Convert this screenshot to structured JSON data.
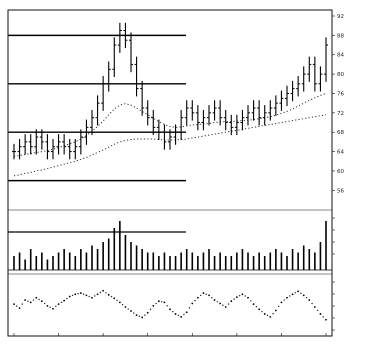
{
  "chart_data": {
    "type": "line",
    "title": "",
    "panels": {
      "price": {
        "type": "candlestick",
        "ylim": [
          54,
          92
        ],
        "y_ticks": [
          56,
          60,
          64,
          68,
          72,
          76,
          80,
          84,
          88,
          92
        ],
        "bold_levels": [
          58,
          68,
          78,
          88
        ],
        "series": [
          {
            "values": [
              64,
              65,
              66,
              65,
              67,
              66,
              64,
              65,
              66,
              65,
              64,
              65,
              67,
              69,
              71,
              74,
              78,
              81,
              86,
              89,
              87,
              82,
              77,
              73,
              71,
              69,
              68,
              66,
              67,
              68,
              71,
              73,
              72,
              70,
              71,
              72,
              73,
              71,
              70,
              69,
              70,
              71,
              72,
              73,
              71,
              72,
              73,
              74,
              75,
              76,
              77,
              78,
              80,
              82,
              78,
              80,
              86
            ]
          },
          {
            "values": [
              63.0,
              63.2,
              63.4,
              63.6,
              63.8,
              64.0,
              64.2,
              64.5,
              64.8,
              65.2,
              65.6,
              66.0,
              66.6,
              67.3,
              68.2,
              69.2,
              70.3,
              71.6,
              72.8,
              73.6,
              73.9,
              73.6,
              73.0,
              72.3,
              71.6,
              70.9,
              70.2,
              69.6,
              69.2,
              69.0,
              69.1,
              69.3,
              69.5,
              69.6,
              69.7,
              69.8,
              70.0,
              70.1,
              70.2,
              70.2,
              70.3,
              70.4,
              70.5,
              70.6,
              70.8,
              71.0,
              71.2,
              71.5,
              71.9,
              72.3,
              72.8,
              73.4,
              74.0,
              74.6,
              75.1,
              75.6,
              76.0
            ]
          },
          {
            "values": [
              59.0,
              59.2,
              59.5,
              59.7,
              60.0,
              60.2,
              60.5,
              60.8,
              61.1,
              61.4,
              61.7,
              62.0,
              62.4,
              62.8,
              63.3,
              63.8,
              64.3,
              64.9,
              65.5,
              66.0,
              66.3,
              66.5,
              66.6,
              66.6,
              66.6,
              66.6,
              66.5,
              66.4,
              66.4,
              66.4,
              66.5,
              66.6,
              66.8,
              67.0,
              67.2,
              67.4,
              67.6,
              67.8,
              68.0,
              68.2,
              68.4,
              68.6,
              68.8,
              69.0,
              69.2,
              69.4,
              69.6,
              69.8,
              70.0,
              70.2,
              70.4,
              70.6,
              70.8,
              71.0,
              71.2,
              71.4,
              71.6
            ]
          }
        ]
      },
      "volume": {
        "type": "bar",
        "values": [
          4,
          5,
          3,
          6,
          4,
          5,
          3,
          4,
          5,
          6,
          5,
          4,
          6,
          5,
          7,
          6,
          8,
          9,
          12,
          14,
          10,
          8,
          7,
          6,
          5,
          5,
          4,
          5,
          4,
          4,
          5,
          6,
          5,
          4,
          5,
          6,
          4,
          5,
          4,
          4,
          5,
          6,
          5,
          4,
          5,
          4,
          5,
          6,
          5,
          4,
          6,
          5,
          7,
          6,
          5,
          8,
          14
        ]
      },
      "oscillator": {
        "type": "scatter",
        "ylim": [
          0,
          100
        ],
        "values": [
          55,
          48,
          62,
          58,
          66,
          60,
          52,
          47,
          55,
          61,
          68,
          72,
          74,
          70,
          66,
          72,
          78,
          71,
          65,
          58,
          50,
          43,
          36,
          32,
          40,
          52,
          60,
          58,
          46,
          38,
          33,
          41,
          56,
          66,
          74,
          70,
          62,
          56,
          50,
          60,
          67,
          72,
          66,
          55,
          46,
          38,
          33,
          44,
          58,
          66,
          72,
          77,
          70,
          62,
          50,
          38,
          28
        ]
      }
    }
  }
}
